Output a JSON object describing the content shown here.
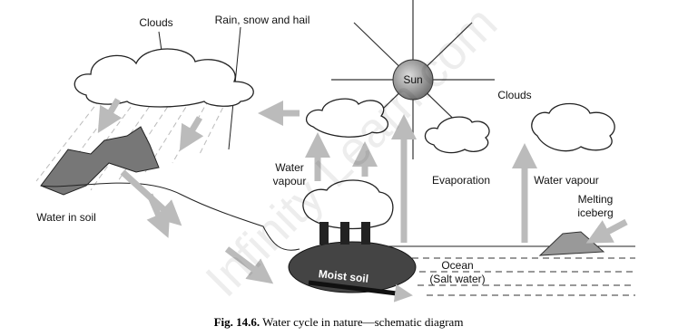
{
  "labels": {
    "clouds_left": "Clouds",
    "rain": "Rain, snow and hail",
    "sun": "Sun",
    "clouds_right": "Clouds",
    "water_vapour_left": [
      "Water",
      "vapour"
    ],
    "evaporation": "Evaporation",
    "water_vapour_right": "Water vapour",
    "melting_iceberg": [
      "Melting",
      "iceberg"
    ],
    "water_in_soil": "Water in soil",
    "ocean": [
      "Ocean",
      "(Salt water)"
    ],
    "moist_soil": "Moist soil"
  },
  "watermark": "Infinity Learn.com",
  "caption": {
    "number": "Fig. 14.6.",
    "text": "Water cycle in nature—schematic diagram"
  }
}
